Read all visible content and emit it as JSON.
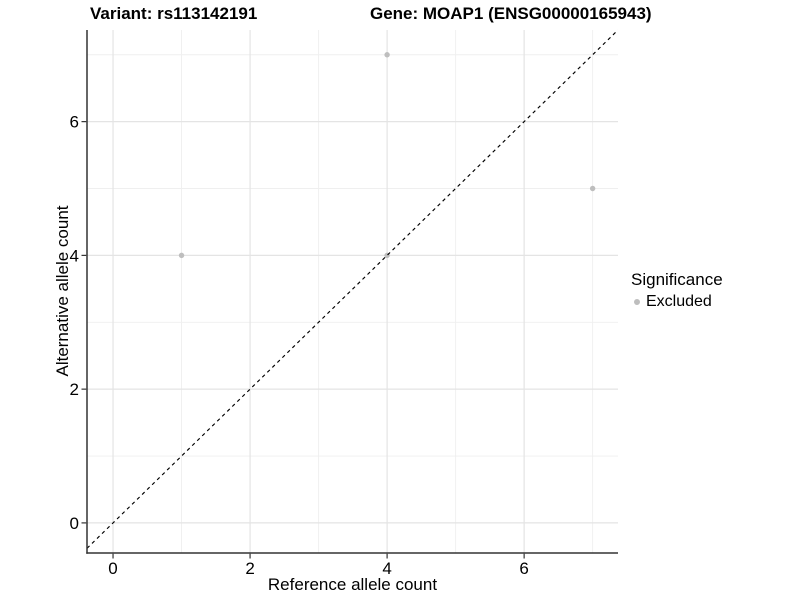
{
  "chart_data": {
    "type": "scatter",
    "title_left": "Variant: rs113142191",
    "title_right": "Gene: MOAP1 (ENSG00000165943)",
    "xlabel": "Reference allele count",
    "ylabel": "Alternative allele count",
    "xlim": [
      -0.38,
      7.37
    ],
    "ylim": [
      -0.45,
      7.37
    ],
    "x_ticks": [
      0,
      2,
      4,
      6
    ],
    "y_ticks": [
      0,
      2,
      4,
      6
    ],
    "x_minor_ticks": [
      1,
      3,
      5,
      7
    ],
    "y_minor_ticks": [
      1,
      3,
      5,
      7
    ],
    "grid": true,
    "series": [
      {
        "name": "Excluded",
        "color": "#BEBEBE",
        "points": [
          {
            "x": 1,
            "y": 4
          },
          {
            "x": 4,
            "y": 4
          },
          {
            "x": 4,
            "y": 7
          },
          {
            "x": 7,
            "y": 5
          }
        ]
      }
    ],
    "reference_line": {
      "type": "identity",
      "equation": "y = x",
      "style": "dashed",
      "color": "#000000"
    },
    "legend": {
      "title": "Significance",
      "position": "right",
      "items": [
        {
          "label": "Excluded",
          "color": "#BEBEBE"
        }
      ]
    }
  },
  "colors": {
    "background": "#FFFFFF",
    "grid_major": "#E4E4E4",
    "grid_minor": "#EFEFEF",
    "axis_line": "#333333",
    "tick": "#333333",
    "text": "#000000"
  }
}
